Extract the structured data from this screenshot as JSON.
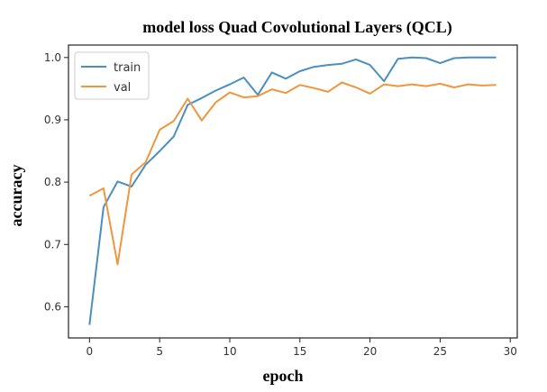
{
  "chart_data": {
    "type": "line",
    "title": "model loss Quad Covolutional Layers (QCL)",
    "xlabel": "epoch",
    "ylabel": "accuracy",
    "xlim": [
      -1.5,
      30.5
    ],
    "ylim": [
      0.55,
      1.02
    ],
    "xticks": [
      0,
      5,
      10,
      15,
      20,
      25,
      30
    ],
    "yticks": [
      0.6,
      0.7,
      0.8,
      0.9,
      1.0
    ],
    "grid": false,
    "legend_position": "top-left",
    "x": [
      0,
      1,
      2,
      3,
      4,
      5,
      6,
      7,
      8,
      9,
      10,
      11,
      12,
      13,
      14,
      15,
      16,
      17,
      18,
      19,
      20,
      21,
      22,
      23,
      24,
      25,
      26,
      27,
      28,
      29
    ],
    "series": [
      {
        "name": "train",
        "color": "#4a8fc0",
        "values": [
          0.571,
          0.76,
          0.801,
          0.793,
          0.828,
          0.85,
          0.873,
          0.924,
          0.935,
          0.947,
          0.957,
          0.968,
          0.94,
          0.976,
          0.966,
          0.978,
          0.985,
          0.988,
          0.99,
          0.997,
          0.988,
          0.962,
          0.998,
          1.0,
          0.999,
          0.991,
          0.999,
          1.0,
          1.0,
          1.0
        ]
      },
      {
        "name": "val",
        "color": "#f0963c",
        "values": [
          0.778,
          0.79,
          0.668,
          0.812,
          0.832,
          0.884,
          0.898,
          0.934,
          0.899,
          0.928,
          0.944,
          0.936,
          0.938,
          0.949,
          0.943,
          0.956,
          0.951,
          0.945,
          0.96,
          0.952,
          0.942,
          0.957,
          0.954,
          0.957,
          0.954,
          0.958,
          0.952,
          0.957,
          0.955,
          0.956
        ]
      }
    ]
  }
}
